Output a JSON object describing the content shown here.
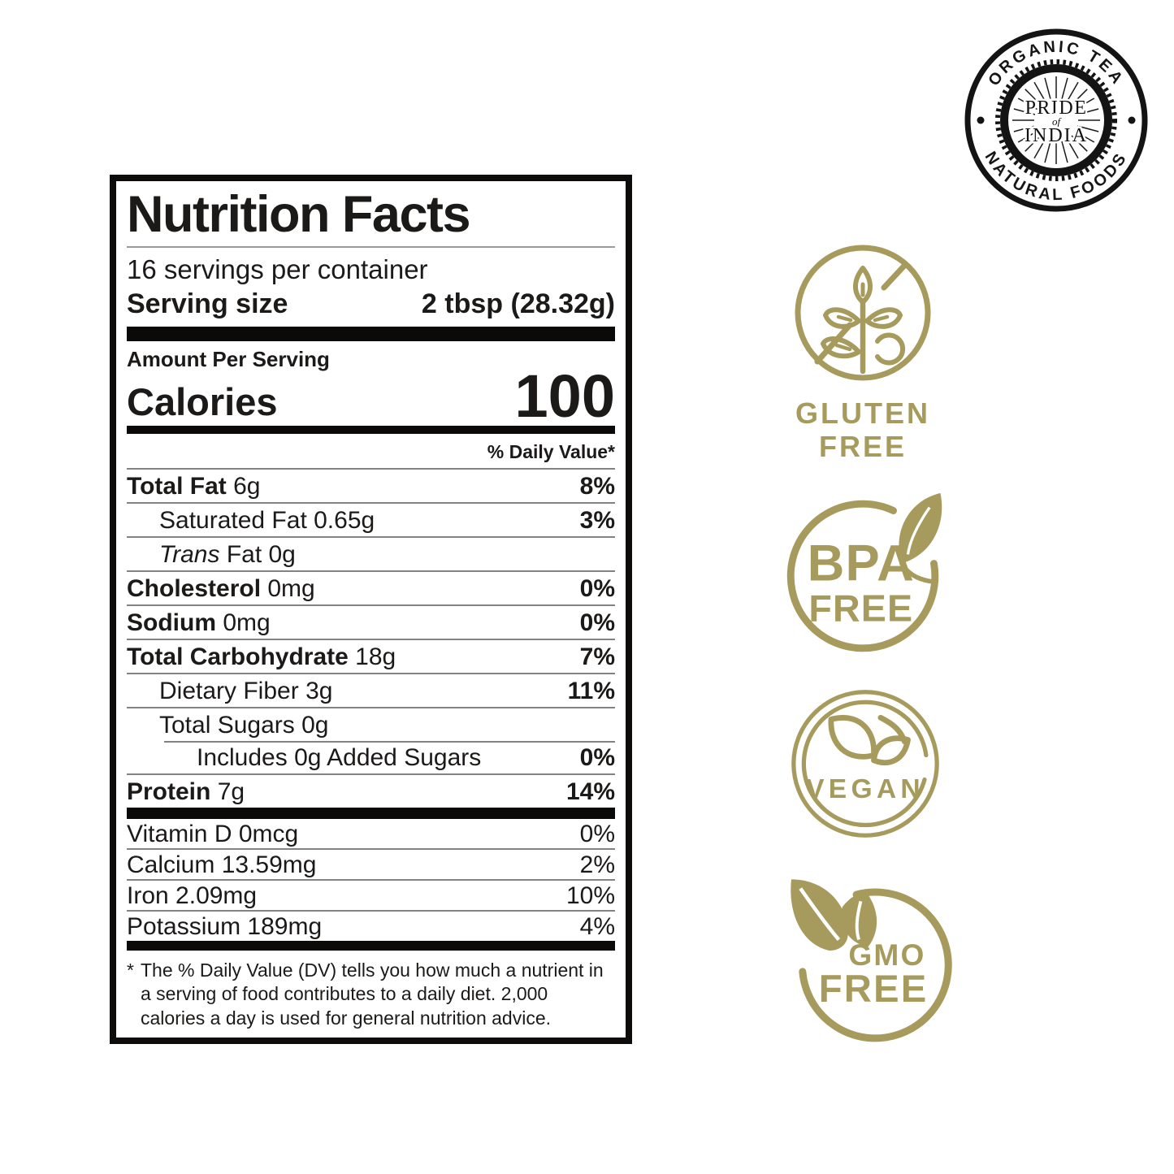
{
  "colors": {
    "gold": "#a69b5d",
    "ink": "#1c1a19"
  },
  "logo": {
    "arc_top": "ORGANIC TEA",
    "arc_bottom": "NATURAL FOODS",
    "center_line1": "PRIDE",
    "center_line2": "of",
    "center_line3": "INDIA"
  },
  "badges": [
    {
      "id": "gluten-free",
      "line1": "GLUTEN",
      "line2": "FREE"
    },
    {
      "id": "bpa-free",
      "line1": "BPA",
      "line2": "FREE"
    },
    {
      "id": "vegan",
      "line1": "VEGAN"
    },
    {
      "id": "gmo-free",
      "line1": "GMO",
      "line2": "FREE"
    }
  ],
  "nutrition_label": {
    "title": "Nutrition Facts",
    "servings_per_container": "16 servings per container",
    "serving_size_label": "Serving size",
    "serving_size_value": "2 tbsp (28.32g)",
    "amount_per_serving": "Amount Per Serving",
    "calories_label": "Calories",
    "calories_value": "100",
    "daily_value_header": "% Daily Value*",
    "rows": [
      {
        "name": "Total Fat",
        "amount": "6g",
        "dv": "8%"
      },
      {
        "name": "Saturated Fat",
        "amount": "0.65g",
        "dv": "3%"
      },
      {
        "name": "Trans",
        "amount": "Fat 0g",
        "dv": ""
      },
      {
        "name": "Cholesterol",
        "amount": "0mg",
        "dv": "0%"
      },
      {
        "name": "Sodium",
        "amount": "0mg",
        "dv": "0%"
      },
      {
        "name": "Total Carbohydrate",
        "amount": "18g",
        "dv": "7%"
      },
      {
        "name": "Dietary Fiber",
        "amount": "3g",
        "dv": "11%"
      },
      {
        "name": "Total Sugars",
        "amount": "0g",
        "dv": ""
      },
      {
        "name": "Includes 0g Added Sugars",
        "amount": "",
        "dv": "0%"
      },
      {
        "name": "Protein",
        "amount": "7g",
        "dv": "14%"
      }
    ],
    "micronutrients": [
      {
        "name": "Vitamin D",
        "amount": "0mcg",
        "dv": "0%"
      },
      {
        "name": "Calcium",
        "amount": "13.59mg",
        "dv": "2%"
      },
      {
        "name": "Iron",
        "amount": "2.09mg",
        "dv": "10%"
      },
      {
        "name": "Potassium",
        "amount": "189mg",
        "dv": "4%"
      }
    ],
    "footnote_marker": "*",
    "footnote": "The % Daily Value (DV) tells you how much a nutrient in a serving of food contributes to a daily diet. 2,000 calories a day is used for general nutrition advice."
  }
}
